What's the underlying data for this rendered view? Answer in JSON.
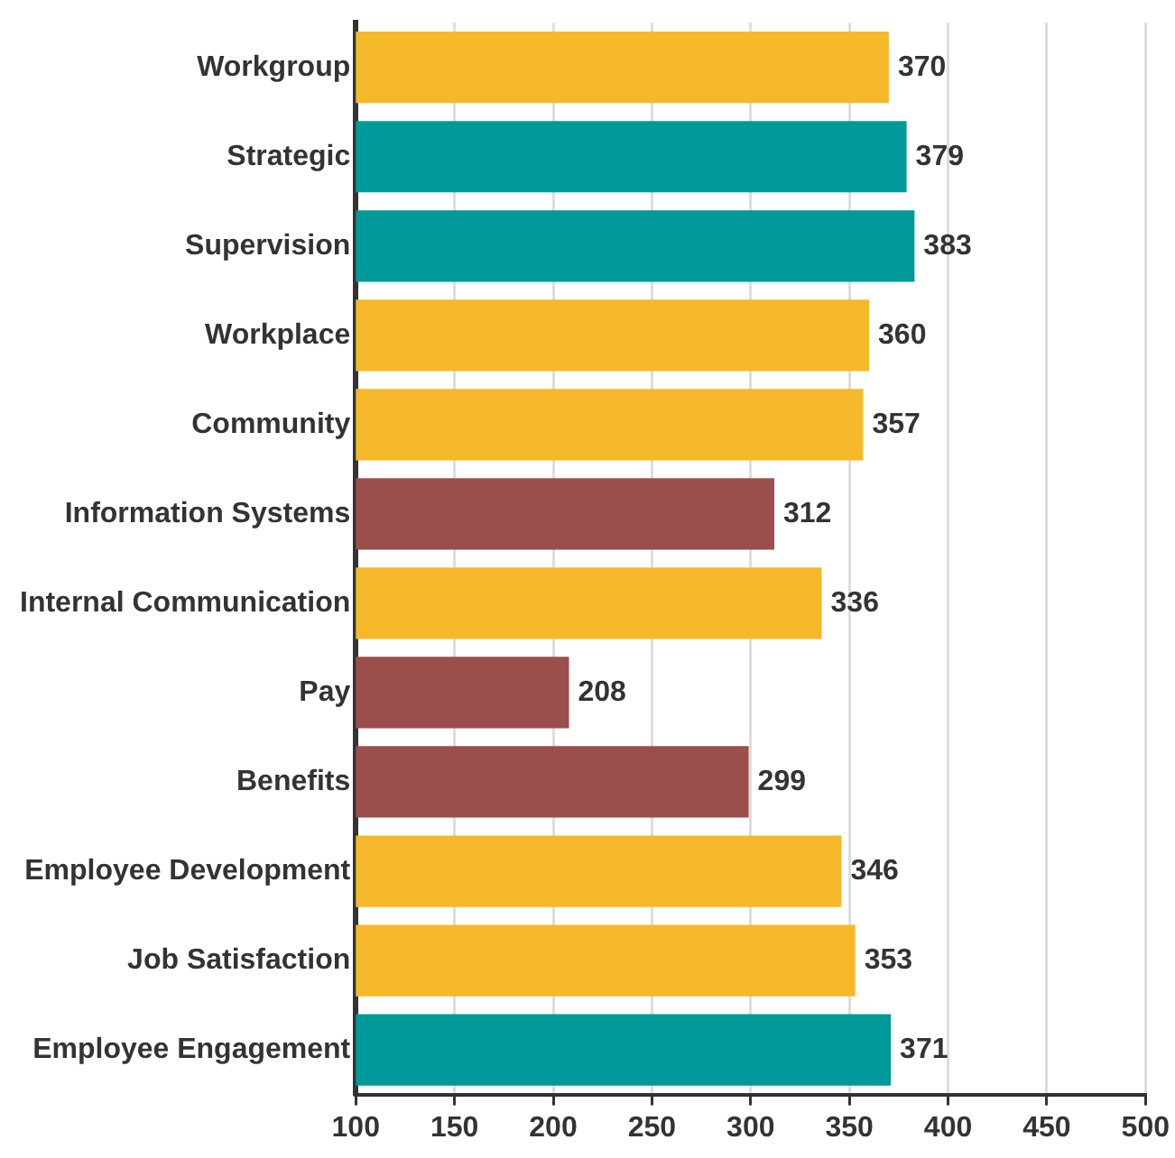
{
  "chart_data": {
    "type": "bar",
    "orientation": "horizontal",
    "categories": [
      "Workgroup",
      "Strategic",
      "Supervision",
      "Workplace",
      "Community",
      "Information Systems",
      "Internal Communication",
      "Pay",
      "Benefits",
      "Employee Development",
      "Job Satisfaction",
      "Employee Engagement"
    ],
    "values": [
      370,
      379,
      383,
      360,
      357,
      312,
      336,
      208,
      299,
      346,
      353,
      371
    ],
    "colors": [
      "#f5b82a",
      "#009999",
      "#009999",
      "#f5b82a",
      "#f5b82a",
      "#9a4f4d",
      "#f5b82a",
      "#9a4f4d",
      "#9a4f4d",
      "#f5b82a",
      "#f5b82a",
      "#009999"
    ],
    "xlim": [
      100,
      500
    ],
    "xticks": [
      100,
      150,
      200,
      250,
      300,
      350,
      400,
      450,
      500
    ],
    "grid": "x",
    "legend": false,
    "data_labels": true
  }
}
